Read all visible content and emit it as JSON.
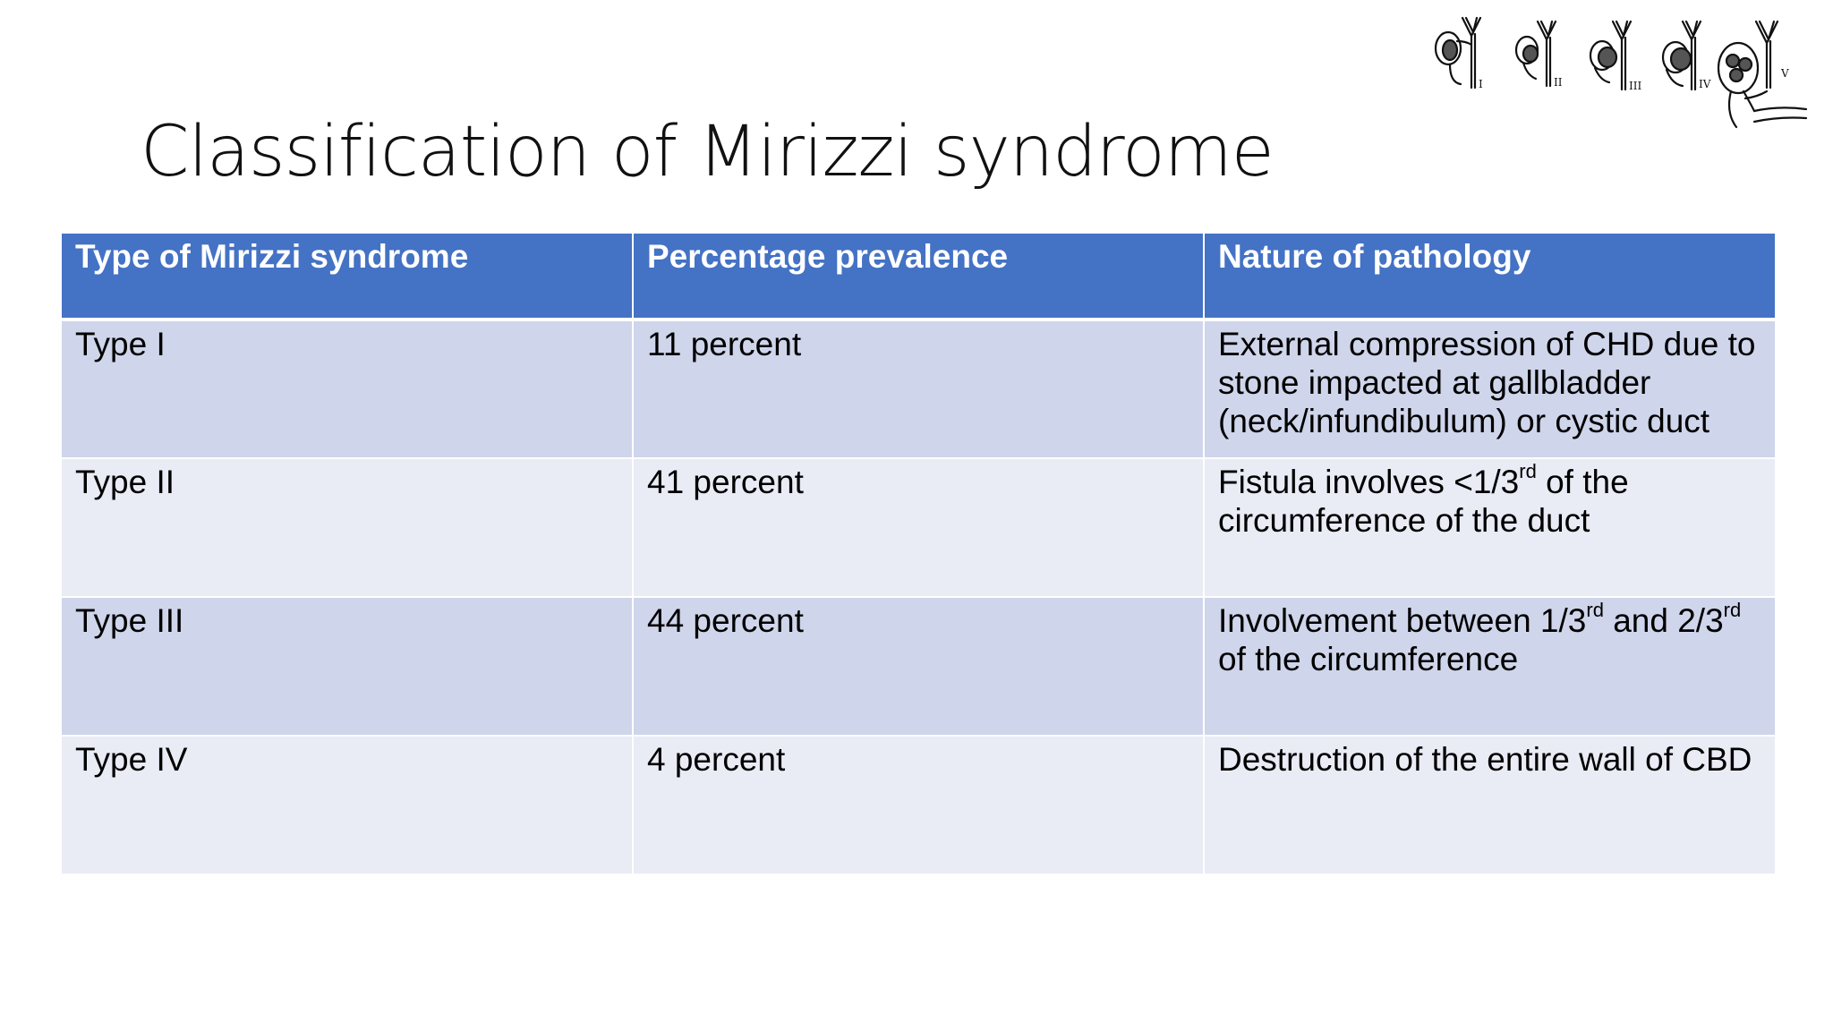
{
  "slide": {
    "title": "Classification of Mirizzi syndrome",
    "illustration_labels": [
      "I",
      "II",
      "III",
      "IV",
      "V"
    ]
  },
  "table": {
    "headers": [
      "Type of Mirizzi syndrome",
      "Percentage prevalence",
      "Nature of pathology"
    ],
    "rows": [
      {
        "type": "Type I",
        "prevalence": "11 percent",
        "pathology": "External compression of CHD due to stone impacted at gallbladder (neck/infundibulum) or cystic duct"
      },
      {
        "type": "Type II",
        "prevalence": "41 percent",
        "pathology_a": "Fistula involves <1/3",
        "pathology_sup": "rd",
        "pathology_b": " of the circumference of the duct"
      },
      {
        "type": "Type III",
        "prevalence": "44 percent",
        "pathology_a": "Involvement between 1/3",
        "pathology_sup": "rd",
        "pathology_b": " and 2/3",
        "pathology_sup2": "rd",
        "pathology_c": " of the circumference"
      },
      {
        "type": "Type IV",
        "prevalence": "4 percent",
        "pathology": "Destruction of the entire wall of CBD"
      }
    ]
  },
  "colors": {
    "header_bg": "#4472c4",
    "row_dark": "#cfd5ea",
    "row_light": "#e9ebf5"
  }
}
